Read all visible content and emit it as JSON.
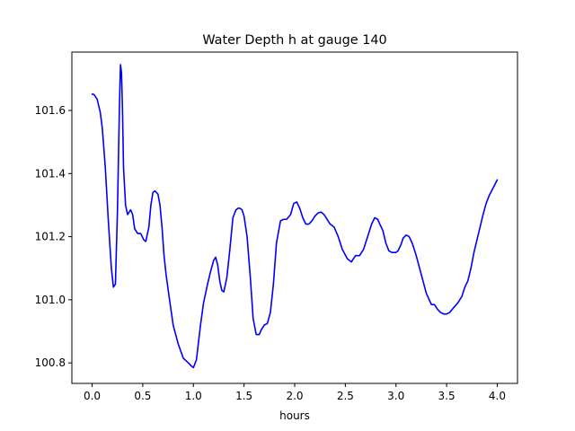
{
  "chart_data": {
    "type": "line",
    "title": "Water Depth h at gauge 140",
    "xlabel": "hours",
    "ylabel": "",
    "xlim": [
      -0.2,
      4.2
    ],
    "ylim": [
      100.735,
      101.785
    ],
    "x_ticks": [
      0.0,
      0.5,
      1.0,
      1.5,
      2.0,
      2.5,
      3.0,
      3.5,
      4.0
    ],
    "x_tick_labels": [
      "0.0",
      "0.5",
      "1.0",
      "1.5",
      "2.0",
      "2.5",
      "3.0",
      "3.5",
      "4.0"
    ],
    "y_ticks": [
      100.8,
      101.0,
      101.2,
      101.4,
      101.6
    ],
    "y_tick_labels": [
      "100.8",
      "101.0",
      "101.2",
      "101.4",
      "101.6"
    ],
    "grid": false,
    "legend": null,
    "series": [
      {
        "color": "#0000ff",
        "x": [
          0.0,
          0.02,
          0.05,
          0.08,
          0.1,
          0.13,
          0.16,
          0.19,
          0.21,
          0.23,
          0.25,
          0.27,
          0.28,
          0.29,
          0.3,
          0.31,
          0.33,
          0.35,
          0.38,
          0.4,
          0.42,
          0.45,
          0.48,
          0.51,
          0.53,
          0.56,
          0.58,
          0.6,
          0.62,
          0.65,
          0.67,
          0.69,
          0.71,
          0.73,
          0.76,
          0.8,
          0.85,
          0.9,
          0.95,
          0.98,
          1.0,
          1.03,
          1.07,
          1.1,
          1.14,
          1.17,
          1.2,
          1.22,
          1.24,
          1.26,
          1.28,
          1.3,
          1.33,
          1.36,
          1.39,
          1.42,
          1.44,
          1.46,
          1.48,
          1.5,
          1.53,
          1.56,
          1.59,
          1.62,
          1.65,
          1.67,
          1.7,
          1.73,
          1.76,
          1.79,
          1.82,
          1.86,
          1.89,
          1.92,
          1.96,
          1.99,
          2.02,
          2.05,
          2.08,
          2.11,
          2.14,
          2.17,
          2.2,
          2.23,
          2.26,
          2.29,
          2.32,
          2.35,
          2.39,
          2.43,
          2.47,
          2.52,
          2.56,
          2.6,
          2.64,
          2.68,
          2.72,
          2.76,
          2.79,
          2.82,
          2.84,
          2.87,
          2.9,
          2.93,
          2.96,
          3.0,
          3.02,
          3.05,
          3.07,
          3.1,
          3.13,
          3.16,
          3.2,
          3.25,
          3.3,
          3.35,
          3.38,
          3.41,
          3.44,
          3.47,
          3.5,
          3.53,
          3.57,
          3.61,
          3.65,
          3.68,
          3.71,
          3.74,
          3.77,
          3.8,
          3.83,
          3.86,
          3.89,
          3.92,
          3.96,
          4.0
        ],
        "y": [
          101.652,
          101.65,
          101.635,
          101.595,
          101.545,
          101.42,
          101.25,
          101.1,
          101.04,
          101.05,
          101.28,
          101.62,
          101.745,
          101.72,
          101.6,
          101.42,
          101.3,
          101.27,
          101.285,
          101.27,
          101.225,
          101.21,
          101.21,
          101.19,
          101.185,
          101.23,
          101.3,
          101.34,
          101.345,
          101.335,
          101.3,
          101.23,
          101.14,
          101.08,
          101.01,
          100.92,
          100.86,
          100.815,
          100.8,
          100.79,
          100.785,
          100.81,
          100.92,
          100.99,
          101.05,
          101.09,
          101.125,
          101.135,
          101.11,
          101.06,
          101.03,
          101.025,
          101.07,
          101.16,
          101.26,
          101.285,
          101.29,
          101.29,
          101.285,
          101.265,
          101.2,
          101.08,
          100.94,
          100.89,
          100.89,
          100.905,
          100.92,
          100.925,
          100.96,
          101.05,
          101.18,
          101.25,
          101.255,
          101.255,
          101.27,
          101.305,
          101.31,
          101.29,
          101.26,
          101.24,
          101.24,
          101.25,
          101.265,
          101.275,
          101.278,
          101.27,
          101.255,
          101.24,
          101.23,
          101.2,
          101.16,
          101.13,
          101.12,
          101.14,
          101.14,
          101.16,
          101.2,
          101.24,
          101.26,
          101.255,
          101.24,
          101.22,
          101.18,
          101.155,
          101.15,
          101.15,
          101.155,
          101.175,
          101.195,
          101.205,
          101.2,
          101.18,
          101.14,
          101.08,
          101.02,
          100.985,
          100.985,
          100.97,
          100.96,
          100.955,
          100.955,
          100.96,
          100.975,
          100.99,
          101.01,
          101.04,
          101.06,
          101.1,
          101.15,
          101.19,
          101.23,
          101.27,
          101.305,
          101.33,
          101.355,
          101.38
        ]
      }
    ]
  }
}
